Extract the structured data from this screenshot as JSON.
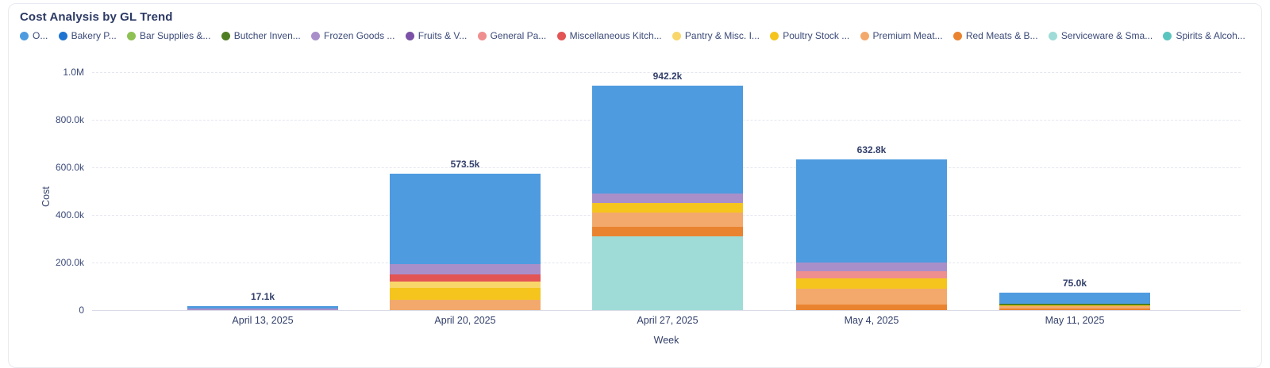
{
  "card": {
    "title": "Cost Analysis by GL Trend"
  },
  "legend": [
    {
      "label": "O...",
      "color": "#4e9bdf"
    },
    {
      "label": "Bakery P...",
      "color": "#1e74d0"
    },
    {
      "label": "Bar Supplies &...",
      "color": "#8ec154"
    },
    {
      "label": "Butcher Inven...",
      "color": "#4f7e22"
    },
    {
      "label": "Frozen Goods ...",
      "color": "#a98fca"
    },
    {
      "label": "Fruits & V...",
      "color": "#7b52a8"
    },
    {
      "label": "General Pa...",
      "color": "#ef8e8e"
    },
    {
      "label": "Miscellaneous Kitch...",
      "color": "#e35454"
    },
    {
      "label": "Pantry & Misc. I...",
      "color": "#f8d66a"
    },
    {
      "label": "Poultry Stock ...",
      "color": "#f5c51d"
    },
    {
      "label": "Premium Meat...",
      "color": "#f3a96b"
    },
    {
      "label": "Red Meats & B...",
      "color": "#ea8330"
    },
    {
      "label": "Serviceware & Sma...",
      "color": "#9fdcd7"
    },
    {
      "label": "Spirits & Alcoh...",
      "color": "#5ac5bf"
    }
  ],
  "axes": {
    "y_title": "Cost",
    "x_title": "Week",
    "y_ticks": [
      "0",
      "200.0k",
      "400.0k",
      "600.0k",
      "800.0k",
      "1.0M"
    ]
  },
  "chart_data": {
    "type": "bar",
    "stacked": true,
    "title": "Cost Analysis by GL Trend",
    "xlabel": "Week",
    "ylabel": "Cost",
    "ylim": [
      0,
      1000000
    ],
    "grid": "dashed-horizontal",
    "legend_position": "top",
    "categories": [
      "April 13, 2025",
      "April 20, 2025",
      "April 27, 2025",
      "May 4, 2025",
      "May 11, 2025"
    ],
    "totals": [
      17100,
      573500,
      942200,
      632800,
      75000
    ],
    "total_labels": [
      "17.1k",
      "573.5k",
      "942.2k",
      "632.8k",
      "75.0k"
    ],
    "bars": [
      {
        "category": "April 13, 2025",
        "total_label": "17.1k",
        "segments": [
          {
            "series": "Frozen Goods ...",
            "value": 6700
          },
          {
            "series": "O...",
            "value": 10400
          }
        ]
      },
      {
        "category": "April 20, 2025",
        "total_label": "573.5k",
        "segments": [
          {
            "series": "Premium Meat...",
            "value": 43000
          },
          {
            "series": "Poultry Stock ...",
            "value": 50000
          },
          {
            "series": "Pantry & Misc. I...",
            "value": 27000
          },
          {
            "series": "Miscellaneous Kitch...",
            "value": 30000
          },
          {
            "series": "Frozen Goods ...",
            "value": 43000
          },
          {
            "series": "O...",
            "value": 380500
          }
        ]
      },
      {
        "category": "April 27, 2025",
        "total_label": "942.2k",
        "segments": [
          {
            "series": "Serviceware & Sma...",
            "value": 310000
          },
          {
            "series": "Red Meats & B...",
            "value": 40000
          },
          {
            "series": "Premium Meat...",
            "value": 60000
          },
          {
            "series": "Poultry Stock ...",
            "value": 40000
          },
          {
            "series": "Frozen Goods ...",
            "value": 40000
          },
          {
            "series": "O...",
            "value": 452200
          }
        ]
      },
      {
        "category": "May 4, 2025",
        "total_label": "632.8k",
        "segments": [
          {
            "series": "Red Meats & B...",
            "value": 22000
          },
          {
            "series": "Premium Meat...",
            "value": 67000
          },
          {
            "series": "Poultry Stock ...",
            "value": 43000
          },
          {
            "series": "General Pa...",
            "value": 33000
          },
          {
            "series": "Frozen Goods ...",
            "value": 35000
          },
          {
            "series": "O...",
            "value": 432800
          }
        ]
      },
      {
        "category": "May 11, 2025",
        "total_label": "75.0k",
        "segments": [
          {
            "series": "Red Meats & B...",
            "value": 7000
          },
          {
            "series": "Premium Meat...",
            "value": 9000
          },
          {
            "series": "Poultry Stock ...",
            "value": 5000
          },
          {
            "series": "Butcher Inven...",
            "value": 7000
          },
          {
            "series": "O...",
            "value": 47000
          }
        ]
      }
    ]
  }
}
